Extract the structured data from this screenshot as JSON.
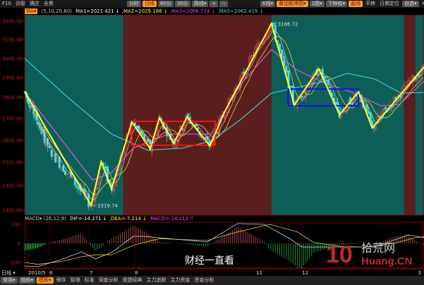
{
  "toolbar": {
    "left": [
      "F10",
      "诊股",
      "擒庄",
      "全景"
    ],
    "periods": [
      {
        "label": "分时",
        "active": false
      },
      {
        "label": "日线",
        "active": true
      },
      {
        "label": "60分",
        "active": false
      },
      {
        "label": "30分",
        "active": false
      },
      {
        "label": "周线▾",
        "active": false
      },
      {
        "label": "+",
        "active": false
      },
      {
        "label": "−",
        "active": false
      }
    ],
    "right": [
      {
        "label": "K线▾",
        "active": false
      },
      {
        "label": "叠加乾坤图▾",
        "active": true
      },
      {
        "label": "2图▾",
        "active": false
      },
      {
        "label": "下除权▾",
        "active": false
      },
      {
        "label": "画线",
        "active": true
      }
    ],
    "right_links": [
      "平移",
      "日期定位"
    ],
    "watchlist": "自选▾",
    "close": "✕"
  },
  "ma_legend": {
    "name": "MA▾",
    "params": "(5,10,20,60)",
    "items": [
      {
        "text": "MA1=2021.421 ↓",
        "color": "#ffffff"
      },
      {
        "text": ",MA2=2029.186 ↓",
        "color": "#ffff40"
      },
      {
        "text": ",MA3=2066.774 ↓",
        "color": "#ff40ff"
      },
      {
        "text": ",MA5=2062.419 ↓",
        "color": "#40e0e0"
      }
    ]
  },
  "macd_legend": {
    "name": "MACD▾",
    "params": "(26,12,9)",
    "items": [
      {
        "text": "DIF=-14.271 ↓",
        "color": "#ffffff"
      },
      {
        "text": ",DEA=-7.214 ↓",
        "color": "#ffff40"
      },
      {
        "text": ",MACD=-14.113 ↑",
        "color": "#ff40ff"
      }
    ]
  },
  "period_label": "日线 ▾",
  "bottom_tabs": [
    {
      "label": "常用▾",
      "active": false
    },
    {
      "label": "指标▾",
      "active": false
    },
    {
      "label": "模板▾",
      "active": true
    },
    {
      "label": "保存"
    },
    {
      "label": "管理"
    },
    {
      "label": "标准"
    },
    {
      "label": "深度分析"
    },
    {
      "label": "盘盟经典"
    },
    {
      "label": "主力追踪"
    },
    {
      "label": "主力资金"
    },
    {
      "label": "资金分析"
    }
  ],
  "watermarks": {
    "weibo": "财经一直看",
    "site_logo": "10",
    "site_cn": "拾荒网",
    "site_en": "Huang.CN"
  },
  "colors": {
    "bull_bg": "#5a1e1e",
    "bear_bg": "#0e5e58",
    "zigzag": "#ffff30",
    "box1": "#ff1010",
    "box2": "#1010ff",
    "up": "#e05050",
    "down": "#40e0e0"
  },
  "chart_data": {
    "type": "candlestick",
    "yticks": [
      "3200.00",
      "3100.00",
      "3000.00",
      "2900.00",
      "2800.00",
      "2700.00",
      "2600.00",
      "2500.00",
      "2400.00",
      "2300.00"
    ],
    "xticks": [
      "2010/5",
      "6",
      "7",
      "8",
      "11",
      "12",
      "3"
    ],
    "macd_yticks": [
      "100",
      "0",
      "-100"
    ],
    "annotations": [
      {
        "text": "2319.74",
        "date": "2010-07-02",
        "price": 2319.74
      },
      {
        "text": "3186.72",
        "date": "2010-11-11",
        "price": 3186.72
      }
    ],
    "regimes": [
      {
        "from": "2010-04-26",
        "to": "2010-07-24",
        "state": "bear"
      },
      {
        "from": "2010-07-24",
        "to": "2010-11-11",
        "state": "bull"
      },
      {
        "from": "2010-11-11",
        "to": "2011-02-17",
        "state": "bear"
      },
      {
        "from": "2011-02-17",
        "to": "2011-02-25",
        "state": "bull"
      },
      {
        "from": "2011-02-25",
        "to": "2011-03-04",
        "state": "bear"
      }
    ],
    "zigzag": [
      [
        "2010-04-26",
        2828
      ],
      [
        "2010-07-02",
        2319.74
      ],
      [
        "2010-07-09",
        2503
      ],
      [
        "2010-07-16",
        2386
      ],
      [
        "2010-07-30",
        2684
      ],
      [
        "2010-08-13",
        2562
      ],
      [
        "2010-08-20",
        2703
      ],
      [
        "2010-08-31",
        2587
      ],
      [
        "2010-09-10",
        2707
      ],
      [
        "2010-09-27",
        2575
      ],
      [
        "2010-10-08",
        2730
      ],
      [
        "2010-11-11",
        3186.72
      ],
      [
        "2010-11-26",
        2764
      ],
      [
        "2010-12-14",
        2946
      ],
      [
        "2010-12-30",
        2718
      ],
      [
        "2011-01-14",
        2828
      ],
      [
        "2011-01-25",
        2657
      ],
      [
        "2011-03-03",
        2956
      ]
    ],
    "boxes": [
      {
        "from": "2010-07-30",
        "to": "2010-10-01",
        "high": 2687,
        "low": 2578,
        "color": "red"
      },
      {
        "from": "2010-11-22",
        "to": "2011-01-14",
        "high": 2842,
        "low": 2760,
        "color": "blue"
      }
    ],
    "ma_cyan": [
      [
        "2010-04-26",
        3000
      ],
      [
        "2010-06-16",
        2793
      ],
      [
        "2010-07-16",
        2629
      ],
      [
        "2010-08-11",
        2555
      ],
      [
        "2010-09-07",
        2565
      ],
      [
        "2010-09-28",
        2597
      ],
      [
        "2010-10-20",
        2694
      ],
      [
        "2010-11-11",
        2821
      ],
      [
        "2010-12-19",
        2882
      ],
      [
        "2011-01-05",
        2923
      ],
      [
        "2011-01-27",
        2893
      ],
      [
        "2011-02-15",
        2821
      ],
      [
        "2011-03-03",
        2825
      ]
    ],
    "ma_magenta": [
      [
        "2010-04-26",
        2828
      ],
      [
        "2010-07-03",
        2424
      ],
      [
        "2010-07-16",
        2455
      ],
      [
        "2010-07-31",
        2565
      ],
      [
        "2010-08-27",
        2629
      ],
      [
        "2010-09-28",
        2629
      ],
      [
        "2010-10-20",
        2864
      ],
      [
        "2010-11-11",
        3047
      ],
      [
        "2010-11-28",
        2938
      ],
      [
        "2010-12-19",
        2871
      ],
      [
        "2011-01-08",
        2828
      ],
      [
        "2011-02-01",
        2760
      ],
      [
        "2011-02-14",
        2767
      ],
      [
        "2011-03-03",
        2882
      ]
    ],
    "dif": [
      [
        "2010-04-26",
        -119
      ],
      [
        "2010-05-15",
        -122
      ],
      [
        "2010-06-10",
        -85
      ],
      [
        "2010-06-25",
        -44
      ],
      [
        "2010-07-05",
        -81
      ],
      [
        "2010-07-16",
        -48
      ],
      [
        "2010-07-31",
        37
      ],
      [
        "2010-08-08",
        37
      ],
      [
        "2010-09-25",
        7
      ],
      [
        "2010-10-18",
        104
      ],
      [
        "2010-11-06",
        100
      ],
      [
        "2010-11-22",
        30
      ],
      [
        "2010-12-01",
        -19
      ],
      [
        "2010-12-19",
        -19
      ],
      [
        "2011-01-08",
        -19
      ],
      [
        "2011-01-27",
        -19
      ],
      [
        "2011-02-20",
        44
      ],
      [
        "2011-03-03",
        30
      ]
    ],
    "dea": [
      [
        "2010-04-26",
        -100
      ],
      [
        "2010-05-15",
        -110
      ],
      [
        "2010-06-10",
        -95
      ],
      [
        "2010-06-25",
        -70
      ],
      [
        "2010-07-05",
        -60
      ],
      [
        "2010-07-16",
        -60
      ],
      [
        "2010-07-31",
        -10
      ],
      [
        "2010-08-20",
        25
      ],
      [
        "2010-09-25",
        15
      ],
      [
        "2010-10-18",
        60
      ],
      [
        "2010-11-10",
        100
      ],
      [
        "2010-11-28",
        60
      ],
      [
        "2010-12-10",
        5
      ],
      [
        "2010-12-30",
        -15
      ],
      [
        "2011-01-20",
        -20
      ],
      [
        "2011-02-10",
        0
      ],
      [
        "2011-02-25",
        30
      ],
      [
        "2011-03-03",
        35
      ]
    ]
  }
}
